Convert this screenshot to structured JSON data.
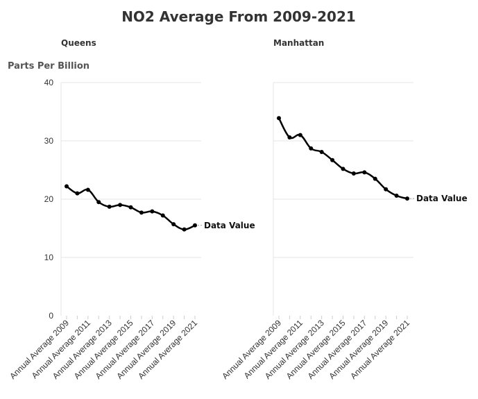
{
  "chart_data": {
    "type": "line",
    "title": "NO2 Average From 2009-2021",
    "ylabel": "Parts Per Billion",
    "xlabel": "",
    "ylim": [
      0,
      40
    ],
    "yticks": [
      0,
      10,
      20,
      30,
      40
    ],
    "grid": true,
    "categories": [
      "Annual Average 2009",
      "Annual Average 2010",
      "Annual Average 2011",
      "Annual Average 2012",
      "Annual Average 2013",
      "Annual Average 2014",
      "Annual Average 2015",
      "Annual Average 2016",
      "Annual Average 2017",
      "Annual Average 2018",
      "Annual Average 2019",
      "Annual Average 2020",
      "Annual Average 2021"
    ],
    "xticks_shown": [
      "Annual Average 2009",
      "Annual Average 2011",
      "Annual Average 2013",
      "Annual Average 2015",
      "Annual Average 2017",
      "Annual Average 2019",
      "Annual Average 2021"
    ],
    "line_color": "#000000",
    "panels": [
      {
        "facet": "Queens",
        "series_label": "Data Value",
        "values": [
          22.2,
          21.0,
          21.6,
          19.5,
          18.7,
          19.0,
          18.6,
          17.7,
          17.9,
          17.2,
          15.7,
          14.8,
          15.5
        ]
      },
      {
        "facet": "Manhattan",
        "series_label": "Data Value",
        "values": [
          33.9,
          30.6,
          31.0,
          28.7,
          28.1,
          26.7,
          25.2,
          24.4,
          24.6,
          23.5,
          21.7,
          20.6,
          20.1
        ]
      }
    ]
  }
}
